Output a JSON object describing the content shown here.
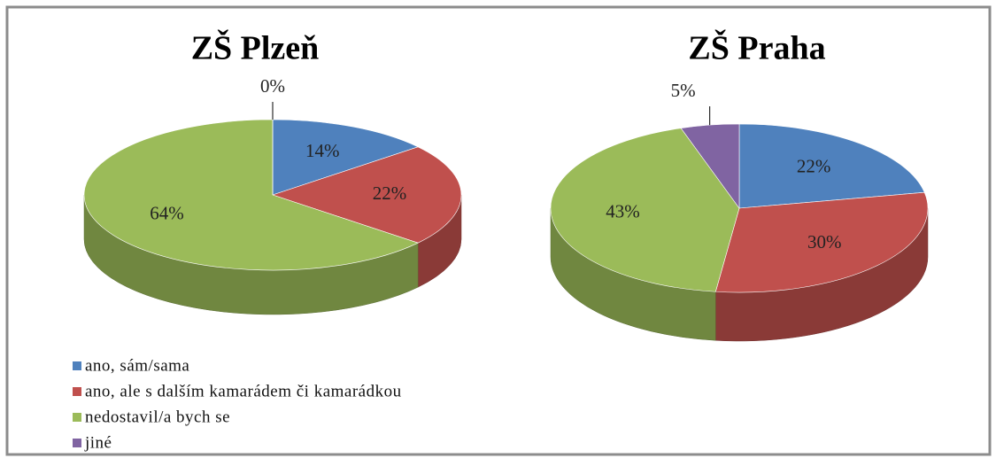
{
  "chart_data": [
    {
      "type": "pie",
      "title": "ZŠ Plzeň",
      "values": [
        14,
        22,
        64,
        0
      ],
      "value_labels": [
        "14%",
        "22%",
        "64%",
        "0%"
      ]
    },
    {
      "type": "pie",
      "title": "ZŠ Praha",
      "values": [
        22,
        30,
        43,
        5
      ],
      "value_labels": [
        "22%",
        "30%",
        "43%",
        "5%"
      ]
    }
  ],
  "legend": {
    "categories": [
      "ano, sám/sama",
      "ano, ale s dalším kamarádem či kamarádkou",
      "nedostavil/a bych se",
      "jiné"
    ],
    "colors": [
      "#4f81bd",
      "#c0504d",
      "#9bbb59",
      "#8064a2"
    ]
  }
}
